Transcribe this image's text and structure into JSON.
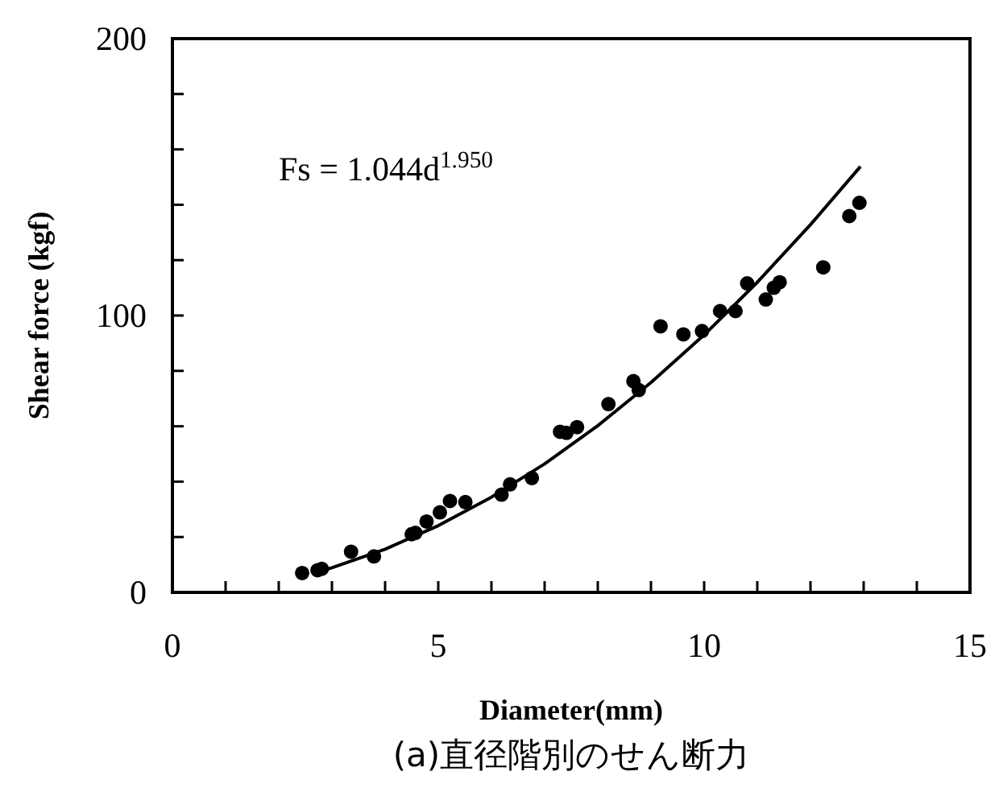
{
  "chart_data": {
    "type": "scatter",
    "title": "(a)直径階別のせん断力",
    "xlabel": "Diameter(mm)",
    "ylabel": "Shear force (kgf)",
    "annotations": [
      "Fs = 1.044d$^{1.950}$"
    ],
    "xlim": [
      0,
      15
    ],
    "ylim": [
      0,
      200
    ],
    "xticks": [
      0,
      {
        "value": 1,
        "label": null
      },
      {
        "value": 2,
        "label": null
      },
      {
        "value": 3,
        "label": null
      },
      {
        "value": 4,
        "label": null
      },
      5,
      {
        "value": 6,
        "label": null
      },
      {
        "value": 7,
        "label": null
      },
      {
        "value": 8,
        "label": null
      },
      {
        "value": 9,
        "label": null
      },
      10,
      {
        "value": 11,
        "label": null
      },
      {
        "value": 12,
        "label": null
      },
      {
        "value": 13,
        "label": null
      },
      {
        "value": 14,
        "label": null
      },
      15
    ],
    "yticks": [
      0,
      {
        "value": 20,
        "label": null
      },
      {
        "value": 40,
        "label": null
      },
      {
        "value": 60,
        "label": null
      },
      {
        "value": 80,
        "label": null
      },
      100,
      {
        "value": 120,
        "label": null
      },
      {
        "value": 140,
        "label": null
      },
      {
        "value": 160,
        "label": null
      },
      {
        "value": 180,
        "label": null
      },
      200
    ],
    "grid": false,
    "series": [
      {
        "color": "#000000",
        "marker": "circle",
        "x": [
          2.44,
          2.73,
          2.81,
          3.36,
          3.79,
          4.5,
          4.57,
          4.78,
          5.03,
          5.22,
          5.51,
          6.19,
          6.35,
          6.76,
          7.29,
          7.41,
          7.61,
          8.2,
          8.67,
          8.77,
          9.18,
          9.61,
          9.96,
          10.3,
          10.59,
          10.81,
          11.16,
          11.31,
          11.42,
          12.24,
          12.73,
          12.92
        ],
        "values": [
          7,
          8,
          8.5,
          14.7,
          13,
          21,
          21.5,
          25.6,
          28.9,
          33,
          32.6,
          35.3,
          39,
          41.3,
          58,
          57.6,
          59.7,
          68,
          76.3,
          73.1,
          96.1,
          93.2,
          94.4,
          101.6,
          101.6,
          111.6,
          105.8,
          110,
          112,
          117.4,
          135.9,
          140.7
        ]
      },
      {
        "type": "line",
        "color": "#000000",
        "line_style": "solid",
        "x": [
          2.7,
          3,
          4,
          5,
          6,
          7,
          8,
          9,
          10,
          11,
          12,
          12.94
        ],
        "values": [
          7.2,
          8.9,
          15.6,
          24.1,
          34.4,
          46.4,
          60.2,
          75.8,
          93,
          112,
          132.8,
          153.8
        ]
      }
    ]
  }
}
